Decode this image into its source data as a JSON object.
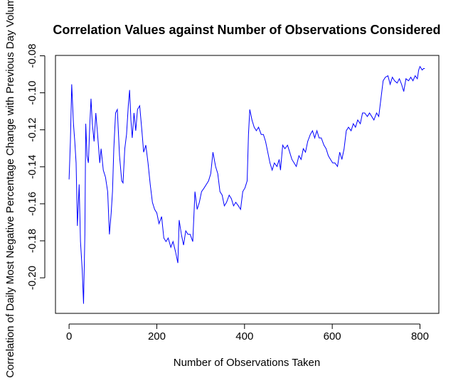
{
  "chart_data": {
    "type": "line",
    "title": "Correlation Values against Number of Observations Considered",
    "x_label": "Number of Observations Taken",
    "y_label": "Correlation of Daily Most Negative Percentage Change with Previous Day Volume",
    "xlim": [
      -31,
      843
    ],
    "ylim": [
      -0.2192,
      -0.0798
    ],
    "xticks": [
      0,
      200,
      400,
      600,
      800
    ],
    "yticks": [
      {
        "value": -0.2,
        "label": "-0.20"
      },
      -0.18,
      -0.16,
      -0.14,
      -0.12,
      {
        "value": -0.1,
        "label": "-0.10"
      },
      -0.08
    ],
    "series": [
      {
        "name": "correlation",
        "color": "#0000ff",
        "x": [
          0,
          3,
          6,
          10,
          13,
          16,
          19,
          23,
          26,
          30,
          33,
          36,
          38,
          41,
          44,
          47,
          50,
          53,
          57,
          61,
          65,
          70,
          73,
          78,
          83,
          88,
          92,
          96,
          99,
          102,
          106,
          110,
          115,
          120,
          123,
          127,
          131,
          135,
          138,
          141,
          144,
          148,
          152,
          156,
          161,
          166,
          170,
          175,
          180,
          185,
          190,
          195,
          200,
          205,
          211,
          216,
          221,
          226,
          232,
          237,
          243,
          248,
          251,
          256,
          261,
          266,
          271,
          276,
          282,
          287,
          292,
          297,
          302,
          308,
          313,
          318,
          323,
          328,
          334,
          339,
          344,
          349,
          354,
          359,
          365,
          370,
          375,
          380,
          386,
          391,
          396,
          401,
          406,
          409,
          412,
          417,
          422,
          427,
          432,
          438,
          443,
          448,
          453,
          458,
          463,
          468,
          474,
          479,
          482,
          487,
          492,
          498,
          503,
          508,
          513,
          518,
          524,
          529,
          534,
          539,
          544,
          550,
          555,
          560,
          565,
          570,
          575,
          581,
          586,
          591,
          596,
          601,
          606,
          612,
          617,
          622,
          627,
          632,
          637,
          643,
          648,
          653,
          658,
          664,
          669,
          674,
          680,
          685,
          690,
          695,
          701,
          706,
          711,
          716,
          721,
          727,
          732,
          737,
          742,
          748,
          753,
          758,
          763,
          768,
          774,
          779,
          784,
          789,
          794,
          797,
          800,
          805,
          808,
          811
        ],
        "values": [
          -0.1468,
          -0.1263,
          -0.0954,
          -0.1167,
          -0.1263,
          -0.1379,
          -0.1719,
          -0.1495,
          -0.1804,
          -0.1958,
          -0.214,
          -0.1765,
          -0.1167,
          -0.134,
          -0.1379,
          -0.1186,
          -0.1032,
          -0.1167,
          -0.1263,
          -0.1109,
          -0.1225,
          -0.1379,
          -0.1302,
          -0.1418,
          -0.1456,
          -0.1534,
          -0.1765,
          -0.1649,
          -0.1534,
          -0.1302,
          -0.1109,
          -0.109,
          -0.134,
          -0.1476,
          -0.1487,
          -0.1302,
          -0.1225,
          -0.107,
          -0.0985,
          -0.1147,
          -0.1244,
          -0.1109,
          -0.1205,
          -0.109,
          -0.107,
          -0.1205,
          -0.1321,
          -0.1283,
          -0.1379,
          -0.1495,
          -0.1592,
          -0.163,
          -0.1649,
          -0.1707,
          -0.1669,
          -0.1785,
          -0.1804,
          -0.1785,
          -0.1835,
          -0.1804,
          -0.1862,
          -0.192,
          -0.1688,
          -0.1765,
          -0.1823,
          -0.1746,
          -0.1765,
          -0.1765,
          -0.1804,
          -0.1534,
          -0.163,
          -0.1592,
          -0.1534,
          -0.1514,
          -0.1495,
          -0.1476,
          -0.1437,
          -0.1321,
          -0.1398,
          -0.1437,
          -0.1534,
          -0.1553,
          -0.1611,
          -0.1592,
          -0.1553,
          -0.1572,
          -0.1611,
          -0.1592,
          -0.1611,
          -0.163,
          -0.1534,
          -0.1514,
          -0.1476,
          -0.1225,
          -0.109,
          -0.1147,
          -0.1186,
          -0.1205,
          -0.1186,
          -0.1225,
          -0.1225,
          -0.1263,
          -0.1321,
          -0.1379,
          -0.1418,
          -0.1379,
          -0.1398,
          -0.136,
          -0.1418,
          -0.1283,
          -0.1302,
          -0.1283,
          -0.1321,
          -0.136,
          -0.1379,
          -0.1398,
          -0.134,
          -0.136,
          -0.1302,
          -0.1321,
          -0.1263,
          -0.1225,
          -0.1205,
          -0.1244,
          -0.1205,
          -0.1244,
          -0.1244,
          -0.1283,
          -0.1302,
          -0.134,
          -0.136,
          -0.1379,
          -0.1379,
          -0.1398,
          -0.1321,
          -0.136,
          -0.1302,
          -0.1205,
          -0.1186,
          -0.1205,
          -0.1167,
          -0.1186,
          -0.1147,
          -0.1167,
          -0.1109,
          -0.1109,
          -0.1128,
          -0.1109,
          -0.1128,
          -0.1147,
          -0.1109,
          -0.1128,
          -0.1032,
          -0.0935,
          -0.0916,
          -0.0908,
          -0.0954,
          -0.0916,
          -0.0935,
          -0.0947,
          -0.0924,
          -0.0954,
          -0.0993,
          -0.0924,
          -0.0935,
          -0.0916,
          -0.0935,
          -0.0908,
          -0.0924,
          -0.0877,
          -0.0858,
          -0.0877,
          -0.0869,
          -0.0869
        ]
      }
    ]
  }
}
